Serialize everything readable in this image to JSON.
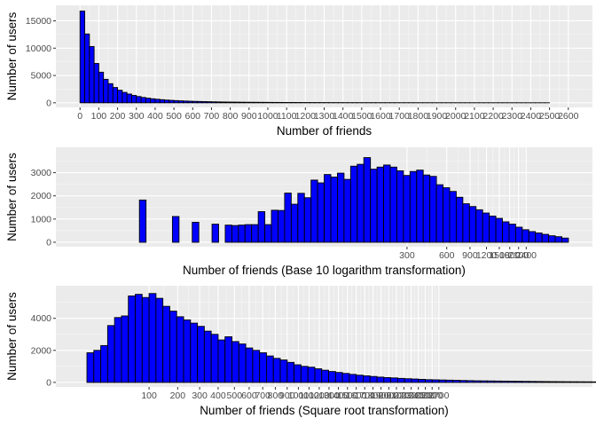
{
  "colors": {
    "panel": "#ebebeb",
    "grid_major": "#ffffff",
    "grid_minor": "#f7f7f7",
    "bar_fill": "#0000ff",
    "bar_stroke": "#000000",
    "tick_text": "#4d4d4d"
  },
  "chart_data": [
    {
      "type": "bar",
      "xlabel": "Number of friends",
      "ylabel": "Number of users",
      "x_scale": "linear",
      "xlim": [
        0,
        2600
      ],
      "ylim": [
        0,
        17000
      ],
      "x_ticks": [
        "0",
        "100",
        "200",
        "300",
        "400",
        "500",
        "600",
        "700",
        "800",
        "900",
        "1000",
        "1100",
        "1200",
        "1300",
        "1400",
        "1500",
        "1600",
        "1700",
        "1800",
        "1900",
        "2000",
        "2100",
        "2200",
        "2300",
        "2400",
        "2500",
        "2600"
      ],
      "y_ticks": [
        "0",
        "5000",
        "10000",
        "15000"
      ],
      "grid": true,
      "bin_width": 25,
      "x_start": 0,
      "values": [
        16800,
        12600,
        10300,
        7200,
        5600,
        4300,
        3500,
        2800,
        2300,
        1900,
        1600,
        1350,
        1150,
        980,
        850,
        740,
        650,
        570,
        500,
        450,
        400,
        360,
        320,
        290,
        260,
        240,
        220,
        200,
        180,
        165,
        150,
        140,
        130,
        120,
        110,
        100,
        95,
        90,
        85,
        80,
        75,
        70,
        66,
        62,
        58,
        55,
        52,
        49,
        46,
        43,
        40,
        38,
        36,
        34,
        32,
        30,
        28,
        27,
        26,
        25,
        24,
        23,
        22,
        21,
        20,
        19,
        18,
        17,
        16,
        15,
        15,
        14,
        14,
        13,
        13,
        12,
        12,
        11,
        11,
        10,
        10,
        10,
        9,
        9,
        9,
        8,
        8,
        8,
        7,
        7,
        7,
        6,
        6,
        6,
        5,
        5,
        5,
        5,
        4,
        4
      ]
    },
    {
      "type": "bar",
      "xlabel": "Number of friends (Base 10 logarithm transformation)",
      "ylabel": "Number of users",
      "x_scale": "log10",
      "xlim": [
        1,
        5000
      ],
      "ylim": [
        0,
        3900
      ],
      "x_ticks": [
        "300",
        "600",
        "900",
        "1200",
        "1500",
        "1800",
        "2100",
        "2400"
      ],
      "y_ticks": [
        "0",
        "1000",
        "2000",
        "3000"
      ],
      "grid": true,
      "log_bin_width": 0.05,
      "log_x_start": 0,
      "values": [
        0,
        0,
        0,
        0,
        0,
        0,
        0,
        0,
        0,
        1820,
        0,
        0,
        0,
        0,
        1110,
        0,
        0,
        860,
        0,
        0,
        780,
        0,
        740,
        720,
        740,
        760,
        760,
        1320,
        760,
        1380,
        1370,
        2120,
        1640,
        2110,
        1920,
        2680,
        2560,
        2920,
        2810,
        2980,
        2710,
        3280,
        3360,
        3650,
        3150,
        3240,
        3330,
        3240,
        3080,
        2880,
        3050,
        3110,
        2900,
        2840,
        2480,
        2350,
        2190,
        1940,
        1660,
        1540,
        1400,
        1260,
        1130,
        1030,
        880,
        780,
        650,
        540,
        460,
        400,
        340,
        280,
        240,
        180
      ]
    },
    {
      "type": "bar",
      "xlabel": "Number of friends (Square root transformation)",
      "ylabel": "Number of users",
      "x_scale": "sqrt",
      "xlim": [
        0,
        5000
      ],
      "ylim": [
        0,
        5750
      ],
      "x_ticks": [
        "100",
        "200",
        "300",
        "400",
        "500",
        "600",
        "700",
        "800",
        "900",
        "1000",
        "1100",
        "1200",
        "1300",
        "1400",
        "1500",
        "1600",
        "1700",
        "1800",
        "1900",
        "2000",
        "2100",
        "2200",
        "2300",
        "2400",
        "2500",
        "2600",
        "2700"
      ],
      "y_ticks": [
        "0",
        "2000",
        "4000"
      ],
      "grid": true,
      "sqrt_bin_width": 1,
      "sqrt_x_start": 1,
      "values": [
        1850,
        2000,
        2300,
        3550,
        4050,
        4150,
        5400,
        5500,
        5300,
        5550,
        5250,
        4750,
        4450,
        4100,
        3900,
        3700,
        3500,
        3200,
        3000,
        2650,
        2850,
        2550,
        2400,
        2150,
        2000,
        1850,
        1650,
        1500,
        1400,
        1250,
        1100,
        1000,
        950,
        850,
        760,
        680,
        620,
        560,
        500,
        450,
        410,
        370,
        330,
        300,
        280,
        250,
        230,
        210,
        190,
        170,
        160,
        150,
        140,
        130,
        120,
        110,
        100,
        95,
        90,
        85,
        80,
        75,
        70,
        65,
        60,
        56,
        52,
        48,
        45,
        42,
        40,
        38,
        36,
        34,
        32,
        30,
        28,
        26,
        24,
        22,
        21,
        20,
        19,
        18,
        17,
        16,
        15,
        14,
        13,
        12,
        12,
        11,
        11,
        10,
        10,
        9,
        9,
        8,
        8,
        7,
        7,
        6,
        6,
        5,
        5,
        5,
        4,
        4,
        4,
        3,
        3,
        3,
        3,
        2,
        2,
        2,
        2,
        2,
        2
      ]
    }
  ]
}
